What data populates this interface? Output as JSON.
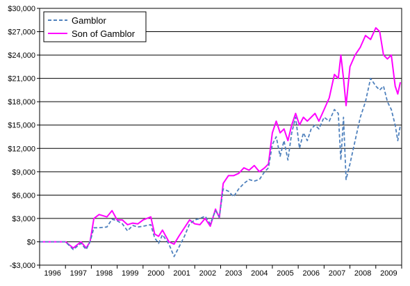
{
  "chart_data": {
    "type": "line",
    "title": "",
    "xlabel": "",
    "ylabel": "",
    "ylim": [
      -3000,
      30000
    ],
    "yticks": [
      -3000,
      0,
      3000,
      6000,
      9000,
      12000,
      15000,
      18000,
      21000,
      24000,
      27000,
      30000
    ],
    "ytick_labels": [
      "-$3,000",
      "$0",
      "$3,000",
      "$6,000",
      "$9,000",
      "$12,000",
      "$15,000",
      "$18,000",
      "$21,000",
      "$24,000",
      "$27,000",
      "$30,000"
    ],
    "xlim": [
      1996.0,
      2010.0
    ],
    "xtick_labels": [
      "1996",
      "1997",
      "1998",
      "1999",
      "2000",
      "2001",
      "2002",
      "2003",
      "2004",
      "2005",
      "2006",
      "2007",
      "2008",
      "2009"
    ],
    "grid": "horizontal",
    "legend_position": "top-left",
    "colors": {
      "gamblor": "#4f81bd",
      "son_of_gamblor": "#ff00ff",
      "grid": "#000000",
      "frame": "#000000"
    },
    "series": [
      {
        "name": "Gamblor",
        "style": "dashed",
        "color": "#4f81bd",
        "x": [
          1996.0,
          1996.5,
          1997.0,
          1997.3,
          1997.6,
          1997.8,
          1997.95,
          1998.1,
          1998.3,
          1998.6,
          1998.8,
          1999.0,
          1999.2,
          1999.4,
          1999.6,
          1999.8,
          2000.0,
          2000.3,
          2000.45,
          2000.6,
          2000.75,
          2001.0,
          2001.2,
          2001.4,
          2001.6,
          2001.8,
          2002.0,
          2002.2,
          2002.4,
          2002.6,
          2002.8,
          2002.95,
          2003.1,
          2003.3,
          2003.5,
          2003.7,
          2003.9,
          2004.1,
          2004.3,
          2004.5,
          2004.7,
          2004.85,
          2005.0,
          2005.15,
          2005.3,
          2005.45,
          2005.6,
          2005.75,
          2005.9,
          2006.05,
          2006.2,
          2006.35,
          2006.5,
          2006.65,
          2006.8,
          2007.0,
          2007.2,
          2007.4,
          2007.55,
          2007.65,
          2007.75,
          2007.85,
          2008.0,
          2008.2,
          2008.4,
          2008.6,
          2008.8,
          2009.0,
          2009.15,
          2009.3,
          2009.45,
          2009.6,
          2009.75,
          2009.85,
          2009.95
        ],
        "values": [
          0,
          0,
          0,
          -1000,
          -200,
          -1000,
          0,
          1800,
          1800,
          1900,
          2900,
          2700,
          2300,
          1400,
          2100,
          1900,
          2000,
          2200,
          500,
          -200,
          900,
          -300,
          -1900,
          -600,
          700,
          2300,
          2800,
          3000,
          3300,
          2300,
          4000,
          3200,
          6800,
          6500,
          5800,
          6800,
          7500,
          8000,
          7800,
          8000,
          9000,
          9500,
          12500,
          13500,
          11000,
          13000,
          10500,
          14000,
          16000,
          12000,
          14000,
          13000,
          14500,
          15000,
          14500,
          16000,
          15500,
          17000,
          16500,
          10500,
          16000,
          8000,
          10000,
          13000,
          16000,
          18000,
          21000,
          20000,
          19500,
          20000,
          18000,
          17000,
          15000,
          13000,
          15000
        ]
      },
      {
        "name": "Son of Gamblor",
        "style": "solid",
        "color": "#ff00ff",
        "x": [
          1996.0,
          1996.5,
          1997.0,
          1997.3,
          1997.6,
          1997.8,
          1997.95,
          1998.1,
          1998.3,
          1998.6,
          1998.8,
          1999.0,
          1999.2,
          1999.4,
          1999.6,
          1999.8,
          2000.0,
          2000.3,
          2000.45,
          2000.6,
          2000.75,
          2001.0,
          2001.2,
          2001.4,
          2001.6,
          2001.8,
          2002.0,
          2002.2,
          2002.4,
          2002.6,
          2002.8,
          2002.95,
          2003.1,
          2003.3,
          2003.5,
          2003.7,
          2003.9,
          2004.1,
          2004.3,
          2004.5,
          2004.7,
          2004.85,
          2005.0,
          2005.15,
          2005.3,
          2005.45,
          2005.6,
          2005.75,
          2005.9,
          2006.05,
          2006.2,
          2006.35,
          2006.5,
          2006.65,
          2006.8,
          2007.0,
          2007.2,
          2007.4,
          2007.55,
          2007.65,
          2007.75,
          2007.85,
          2008.0,
          2008.2,
          2008.4,
          2008.6,
          2008.8,
          2009.0,
          2009.15,
          2009.3,
          2009.45,
          2009.6,
          2009.75,
          2009.85,
          2009.95
        ],
        "values": [
          0,
          0,
          0,
          -800,
          0,
          -800,
          0,
          3000,
          3500,
          3200,
          4000,
          2800,
          2800,
          2200,
          2400,
          2300,
          2800,
          3200,
          1000,
          700,
          1500,
          0,
          -300,
          800,
          1800,
          2800,
          2300,
          2200,
          3000,
          2000,
          4200,
          3100,
          7500,
          8500,
          8500,
          8800,
          9500,
          9200,
          9800,
          9000,
          9500,
          10000,
          14000,
          15500,
          14000,
          14500,
          13000,
          15000,
          16500,
          15000,
          16000,
          15500,
          16000,
          16500,
          15500,
          17000,
          18500,
          21500,
          21000,
          24000,
          21000,
          17500,
          22500,
          24000,
          25000,
          26500,
          26000,
          27500,
          27000,
          24000,
          23500,
          24000,
          20000,
          19000,
          20500
        ]
      }
    ]
  }
}
